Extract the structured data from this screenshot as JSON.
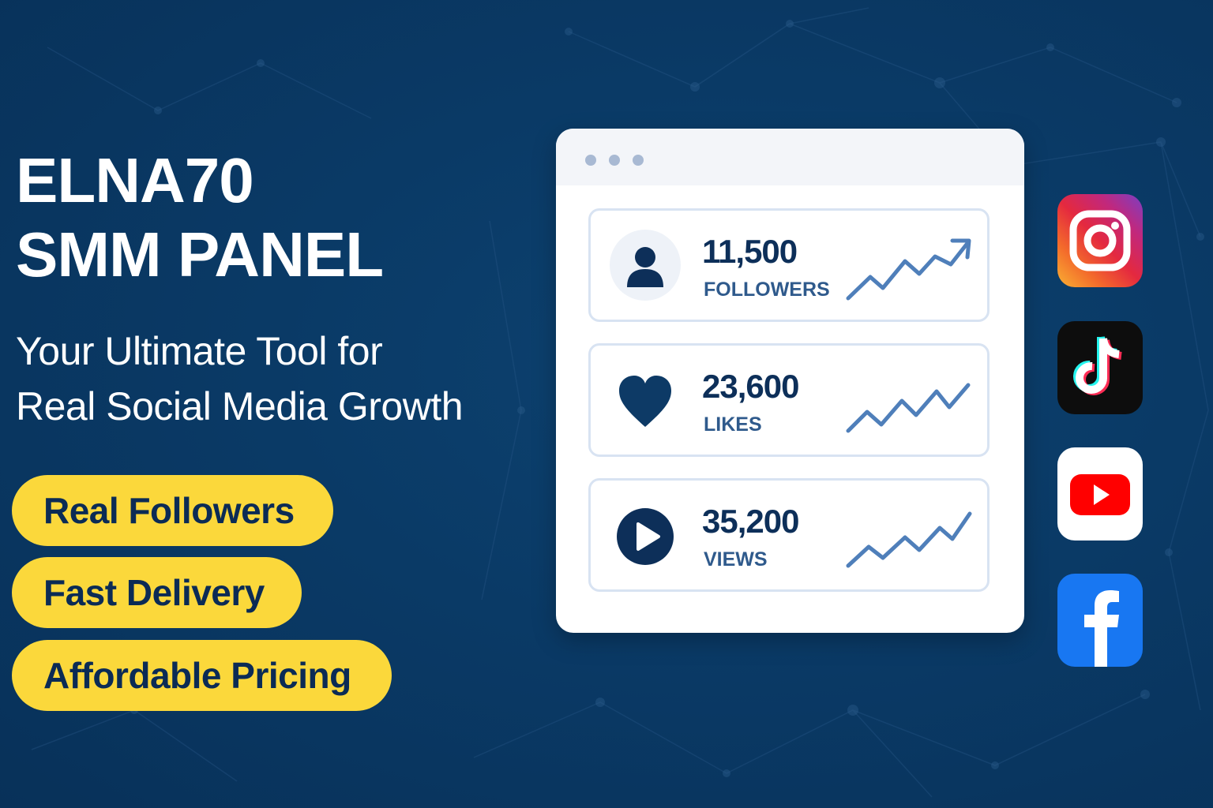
{
  "brand": {
    "title_line1": "ELNA70",
    "title_line2": "SMM PANEL",
    "tagline_line1": "Your Ultimate Tool for",
    "tagline_line2": "Real Social Media Growth"
  },
  "features": [
    "Real Followers",
    "Fast Delivery",
    "Affordable Pricing"
  ],
  "dashboard": {
    "stats": [
      {
        "value": "11,500",
        "label": "FOLLOWERS",
        "icon": "user-icon"
      },
      {
        "value": "23,600",
        "label": "LIKES",
        "icon": "heart-icon"
      },
      {
        "value": "35,200",
        "label": "VIEWS",
        "icon": "play-icon"
      }
    ]
  },
  "social_icons": [
    "instagram-icon",
    "tiktok-icon",
    "youtube-icon",
    "facebook-icon"
  ],
  "colors": {
    "background": "#0a3a66",
    "accent_yellow": "#fbd83b",
    "navy_text": "#0b2b55",
    "stat_blue": "#2f5a8c",
    "trend_line": "#4f7fba"
  }
}
